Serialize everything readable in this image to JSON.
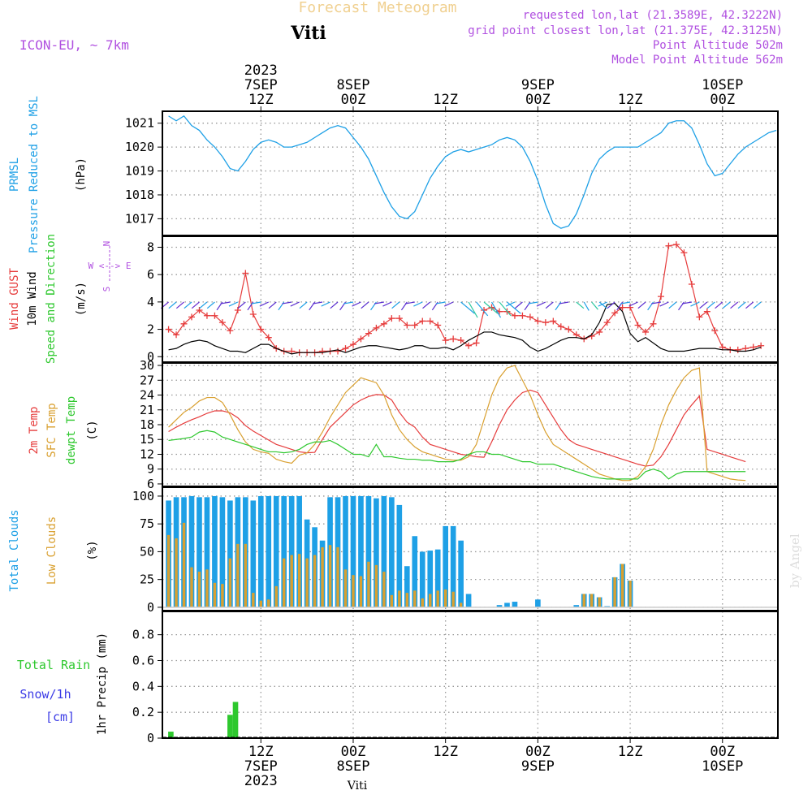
{
  "header": {
    "product_title": "Forecast Meteogram",
    "location": "Viti",
    "model": "ICON-EU, ~ 7km",
    "requested": "requested lon,lat (21.3589E, 42.3222N)",
    "grid_point": "grid point closest lon,lat (21.375E, 42.3125N)",
    "point_altitude": "Point Altitude 502m",
    "model_altitude": "Model Point Altitude 562m",
    "credit": "by Angel",
    "bottom_label": "Viti"
  },
  "time_axis": {
    "top_labels": [
      {
        "hour": 12,
        "l1": "2023",
        "l2": "7SEP",
        "l3": "12Z"
      },
      {
        "hour": 24,
        "l2": "8SEP",
        "l3": "00Z"
      },
      {
        "hour": 36,
        "l3": "12Z"
      },
      {
        "hour": 48,
        "l2": "9SEP",
        "l3": "00Z"
      },
      {
        "hour": 60,
        "l3": "12Z"
      },
      {
        "hour": 72,
        "l2": "10SEP",
        "l3": "00Z"
      }
    ],
    "bottom_labels": [
      {
        "hour": 12,
        "l1": "12Z",
        "l2": "7SEP",
        "l3": "2023"
      },
      {
        "hour": 24,
        "l1": "00Z",
        "l2": "8SEP"
      },
      {
        "hour": 36,
        "l1": "12Z"
      },
      {
        "hour": 48,
        "l1": "00Z",
        "l2": "9SEP"
      },
      {
        "hour": 60,
        "l1": "12Z"
      },
      {
        "hour": 72,
        "l1": "00Z",
        "l2": "10SEP"
      }
    ]
  },
  "colors": {
    "pressure": "#1ea0e6",
    "gust": "#e63c3c",
    "wind": "#000000",
    "temp": "#e63c3c",
    "sfc_temp": "#d9a030",
    "dewpoint": "#2ec82e",
    "total_clouds": "#1ea0e6",
    "low_clouds": "#d9a030",
    "rain": "#2ec82e",
    "snow": "#3c3ce6",
    "header_purple": "#b050e0",
    "title_gold": "#f0d090"
  },
  "panels": {
    "pressure": {
      "label1": "PRMSL",
      "label2": "Pressure Reduced to MSL",
      "unit": "(hPa)"
    },
    "wind": {
      "label1": "Wind GUST",
      "label2": "10m Wind",
      "label3": "Speed and Direction",
      "unit": "(m/s)",
      "compass_n": "N",
      "compass_s": "S",
      "compass_we": "W <--> E"
    },
    "temp": {
      "label1": "2m Temp",
      "label2": "SFC Temp",
      "label3": "dewpt Temp",
      "unit": "(C)"
    },
    "clouds": {
      "label1": "Total Clouds",
      "label2": "Low Clouds",
      "unit": "(%)"
    },
    "precip": {
      "label1": "Total  Rain",
      "label2": "Snow/1h",
      "label3": "[cm]",
      "ylabel": "1hr Precip (mm)"
    }
  },
  "chart_data": [
    {
      "type": "line",
      "id": "pressure",
      "ylim": [
        1016.3,
        1021.5
      ],
      "yticks": [
        1017,
        1018,
        1019,
        1020,
        1021
      ],
      "x": [
        0,
        1,
        2,
        3,
        4,
        5,
        6,
        7,
        8,
        9,
        10,
        11,
        12,
        13,
        14,
        15,
        16,
        17,
        18,
        19,
        20,
        21,
        22,
        23,
        24,
        25,
        26,
        27,
        28,
        29,
        30,
        31,
        32,
        33,
        34,
        35,
        36,
        37,
        38,
        39,
        40,
        41,
        42,
        43,
        44,
        45,
        46,
        47,
        48,
        49,
        50,
        51,
        52,
        53,
        54,
        55,
        56,
        57,
        58,
        59,
        60,
        61,
        62,
        63,
        64,
        65,
        66,
        67,
        68,
        69,
        70,
        71,
        72,
        73,
        74,
        75,
        76,
        77,
        78,
        79
      ],
      "series": [
        {
          "values": [
            1021.3,
            1021.1,
            1021.3,
            1020.9,
            1020.7,
            1020.3,
            1020.0,
            1019.6,
            1019.1,
            1019.0,
            1019.4,
            1019.9,
            1020.2,
            1020.3,
            1020.2,
            1020.0,
            1020.0,
            1020.1,
            1020.2,
            1020.4,
            1020.6,
            1020.8,
            1020.9,
            1020.8,
            1020.4,
            1020.0,
            1019.5,
            1018.8,
            1018.1,
            1017.5,
            1017.1,
            1017.0,
            1017.3,
            1018.0,
            1018.7,
            1019.2,
            1019.6,
            1019.8,
            1019.9,
            1019.8,
            1019.9,
            1020.0,
            1020.1,
            1020.3,
            1020.4,
            1020.3,
            1020.0,
            1019.4,
            1018.6,
            1017.6,
            1016.8,
            1016.6,
            1016.7,
            1017.2,
            1018.0,
            1018.9,
            1019.5,
            1019.8,
            1020.0,
            1020.0,
            1020.0,
            1020.0,
            1020.2,
            1020.4,
            1020.6,
            1021.0,
            1021.1,
            1021.1,
            1020.8,
            1020.1,
            1019.3,
            1018.8,
            1018.9,
            1019.3,
            1019.7,
            1020.0,
            1020.2,
            1020.4,
            1020.6,
            1020.7
          ]
        }
      ]
    },
    {
      "type": "line",
      "id": "wind",
      "ylim": [
        -0.4,
        8.8
      ],
      "yticks": [
        0,
        2,
        4,
        6,
        8
      ],
      "x": [
        0,
        1,
        2,
        3,
        4,
        5,
        6,
        7,
        8,
        9,
        10,
        11,
        12,
        13,
        14,
        15,
        16,
        17,
        18,
        19,
        20,
        21,
        22,
        23,
        24,
        25,
        26,
        27,
        28,
        29,
        30,
        31,
        32,
        33,
        34,
        35,
        36,
        37,
        38,
        39,
        40,
        41,
        42,
        43,
        44,
        45,
        46,
        47,
        48,
        49,
        50,
        51,
        52,
        53,
        54,
        55,
        56,
        57,
        58,
        59,
        60,
        61,
        62,
        63,
        64,
        65,
        66,
        67,
        68,
        69,
        70,
        71,
        72,
        73,
        74,
        75,
        76,
        77
      ],
      "series": [
        {
          "name": "Wind GUST",
          "values": [
            2.0,
            1.6,
            2.4,
            2.9,
            3.4,
            3.0,
            3.0,
            2.5,
            1.9,
            3.4,
            6.1,
            3.1,
            2.0,
            1.4,
            0.6,
            0.4,
            0.4,
            0.3,
            0.3,
            0.3,
            0.4,
            0.4,
            0.4,
            0.6,
            0.9,
            1.3,
            1.7,
            2.1,
            2.4,
            2.8,
            2.8,
            2.3,
            2.3,
            2.6,
            2.6,
            2.3,
            1.2,
            1.3,
            1.2,
            0.8,
            1.0,
            3.4,
            3.6,
            3.3,
            3.3,
            3.0,
            3.0,
            2.9,
            2.6,
            2.5,
            2.6,
            2.2,
            2.0,
            1.6,
            1.3,
            1.5,
            1.8,
            2.5,
            3.2,
            3.6,
            3.6,
            2.3,
            1.8,
            2.4,
            4.4,
            8.1,
            8.2,
            7.6,
            5.3,
            2.9,
            3.3,
            1.9,
            0.7,
            0.5,
            0.5,
            0.6,
            0.7,
            0.8
          ]
        },
        {
          "name": "10m Wind",
          "values": [
            0.5,
            0.6,
            0.9,
            1.1,
            1.2,
            1.1,
            0.8,
            0.6,
            0.4,
            0.4,
            0.3,
            0.6,
            0.9,
            0.9,
            0.6,
            0.4,
            0.2,
            0.3,
            0.3,
            0.3,
            0.3,
            0.4,
            0.5,
            0.3,
            0.5,
            0.7,
            0.8,
            0.8,
            0.7,
            0.6,
            0.5,
            0.6,
            0.8,
            0.8,
            0.6,
            0.6,
            0.7,
            0.5,
            0.8,
            1.2,
            1.5,
            1.8,
            1.8,
            1.6,
            1.5,
            1.4,
            1.2,
            0.7,
            0.4,
            0.6,
            0.9,
            1.2,
            1.4,
            1.4,
            1.3,
            1.6,
            2.5,
            3.8,
            3.9,
            3.3,
            1.7,
            1.1,
            1.4,
            1.0,
            0.6,
            0.4,
            0.4,
            0.4,
            0.5,
            0.6,
            0.6,
            0.6,
            0.5,
            0.5,
            0.4,
            0.4,
            0.5,
            0.7
          ]
        }
      ]
    },
    {
      "type": "line",
      "id": "temperature",
      "ylim": [
        5.5,
        30.5
      ],
      "yticks": [
        6,
        9,
        12,
        15,
        18,
        21,
        24,
        27,
        30
      ],
      "x": [
        0,
        1,
        2,
        3,
        4,
        5,
        6,
        7,
        8,
        9,
        10,
        11,
        12,
        13,
        14,
        15,
        16,
        17,
        18,
        19,
        20,
        21,
        22,
        23,
        24,
        25,
        26,
        27,
        28,
        29,
        30,
        31,
        32,
        33,
        34,
        35,
        36,
        37,
        38,
        39,
        40,
        41,
        42,
        43,
        44,
        45,
        46,
        47,
        48,
        49,
        50,
        51,
        52,
        53,
        54,
        55,
        56,
        57,
        58,
        59,
        60,
        61,
        62,
        63,
        64,
        65,
        66,
        67,
        68,
        69,
        70,
        71,
        72,
        73,
        74,
        75
      ],
      "series": [
        {
          "name": "2m Temp",
          "values": [
            16.6,
            17.5,
            18.3,
            19.0,
            19.6,
            20.3,
            20.8,
            20.8,
            20.4,
            19.4,
            17.8,
            16.7,
            15.8,
            14.9,
            14.0,
            13.5,
            13.0,
            12.5,
            12.3,
            12.4,
            15.0,
            17.5,
            19.0,
            20.5,
            22.0,
            23.0,
            23.7,
            24.1,
            24.0,
            23.0,
            20.5,
            18.5,
            17.5,
            15.5,
            14.0,
            13.5,
            13.0,
            12.5,
            12.0,
            11.8,
            11.5,
            11.4,
            14.5,
            18.0,
            21.0,
            23.0,
            24.5,
            25.0,
            24.5,
            22.0,
            19.5,
            17.0,
            15.0,
            14.0,
            13.5,
            13.0,
            12.5,
            12.0,
            11.5,
            11.0,
            10.5,
            10.0,
            9.6,
            9.8,
            11.5,
            14.0,
            17.0,
            20.0,
            22.0,
            23.8,
            13.0,
            12.5,
            12.0,
            11.5,
            11.0,
            10.5
          ]
        },
        {
          "name": "SFC Temp",
          "values": [
            17.5,
            19.0,
            20.5,
            21.5,
            22.8,
            23.5,
            23.5,
            22.5,
            20.0,
            17.0,
            14.5,
            13.0,
            12.5,
            12.2,
            11.0,
            10.5,
            10.2,
            11.8,
            12.3,
            14.0,
            16.5,
            19.5,
            22.0,
            24.5,
            26.0,
            27.5,
            27.0,
            26.5,
            24.0,
            20.0,
            17.0,
            15.0,
            13.5,
            12.5,
            12.0,
            11.5,
            11.0,
            10.8,
            10.8,
            11.5,
            14.0,
            19.0,
            24.0,
            27.5,
            29.5,
            30.0,
            27.0,
            24.0,
            20.0,
            16.5,
            14.0,
            13.0,
            12.0,
            11.0,
            10.0,
            9.0,
            8.0,
            7.5,
            7.0,
            6.7,
            6.7,
            7.5,
            9.5,
            13.0,
            18.0,
            22.0,
            25.0,
            27.5,
            29.0,
            29.5,
            8.5,
            8.0,
            7.5,
            7.0,
            6.8,
            6.7
          ]
        },
        {
          "name": "dewpt Temp",
          "values": [
            14.8,
            15.0,
            15.2,
            15.5,
            16.5,
            16.8,
            16.5,
            15.5,
            15.0,
            14.5,
            14.0,
            13.5,
            13.0,
            12.5,
            12.5,
            12.3,
            12.5,
            13.0,
            14.0,
            14.5,
            14.5,
            14.8,
            14.0,
            13.0,
            12.0,
            12.0,
            11.5,
            14.0,
            11.5,
            11.5,
            11.2,
            11.0,
            11.0,
            10.8,
            10.8,
            10.5,
            10.5,
            10.5,
            11.0,
            12.0,
            12.5,
            12.5,
            12.0,
            12.0,
            11.5,
            11.0,
            10.5,
            10.5,
            10.0,
            10.0,
            10.0,
            9.5,
            9.0,
            8.5,
            8.0,
            7.5,
            7.2,
            7.0,
            7.0,
            7.0,
            7.0,
            7.0,
            8.5,
            9.0,
            8.5,
            7.0,
            8.0,
            8.5,
            8.5,
            8.5,
            8.5,
            8.5,
            8.5,
            8.5,
            8.5,
            8.5
          ]
        }
      ]
    },
    {
      "type": "bar",
      "id": "clouds",
      "ylim": [
        -3,
        108
      ],
      "yticks": [
        0,
        25,
        50,
        75,
        100
      ],
      "x": [
        0,
        1,
        2,
        3,
        4,
        5,
        6,
        7,
        8,
        9,
        10,
        11,
        12,
        13,
        14,
        15,
        16,
        17,
        18,
        19,
        20,
        21,
        22,
        23,
        24,
        25,
        26,
        27,
        28,
        29,
        30,
        31,
        32,
        33,
        34,
        35,
        36,
        37,
        38,
        39,
        40,
        41,
        42,
        43,
        44,
        45,
        46,
        47,
        48,
        49,
        50,
        51,
        52,
        53,
        54,
        55,
        56,
        57,
        58,
        59,
        60,
        61,
        62,
        63,
        64,
        65,
        66,
        67,
        68,
        69,
        70,
        71,
        72,
        73,
        74,
        75,
        76,
        77,
        78,
        79
      ],
      "series": [
        {
          "name": "Total Clouds",
          "values": [
            96,
            99,
            99,
            100,
            99,
            99,
            100,
            99,
            96,
            99,
            99,
            96,
            100,
            100,
            100,
            100,
            100,
            100,
            79,
            72,
            60,
            99,
            99,
            100,
            100,
            100,
            100,
            98,
            100,
            99,
            92,
            37,
            64,
            50,
            51,
            52,
            73,
            73,
            60,
            12,
            0,
            0,
            0,
            2,
            4,
            5,
            0,
            0,
            7,
            0,
            0,
            0,
            0,
            2,
            12,
            12,
            9,
            1,
            27,
            39,
            24,
            0,
            0,
            0,
            0,
            0,
            0,
            0,
            0,
            0,
            0,
            0,
            0,
            0,
            0,
            0,
            0,
            0,
            0,
            0
          ]
        },
        {
          "name": "Low Clouds",
          "values": [
            65,
            62,
            76,
            36,
            32,
            34,
            22,
            21,
            44,
            57,
            57,
            13,
            6,
            7,
            19,
            44,
            47,
            48,
            44,
            47,
            54,
            56,
            54,
            34,
            29,
            28,
            41,
            38,
            32,
            11,
            15,
            13,
            15,
            8,
            12,
            15,
            16,
            14,
            4,
            0,
            0,
            0,
            0,
            0,
            0,
            0,
            0,
            0,
            0,
            0,
            0,
            0,
            0,
            0,
            12,
            12,
            9,
            0,
            27,
            39,
            24,
            0,
            0,
            0,
            0,
            0,
            0,
            0,
            0,
            0,
            0,
            0,
            0,
            0,
            0,
            0,
            0,
            0,
            0,
            0
          ]
        }
      ]
    },
    {
      "type": "bar",
      "id": "precip",
      "ylim": [
        0,
        0.98
      ],
      "yticks": [
        0,
        0.2,
        0.4,
        0.6,
        0.8
      ],
      "x": [
        0.3,
        8.0,
        8.7
      ],
      "series": [
        {
          "name": "Total Rain",
          "values": [
            0.05,
            0.18,
            0.28
          ]
        }
      ]
    }
  ]
}
